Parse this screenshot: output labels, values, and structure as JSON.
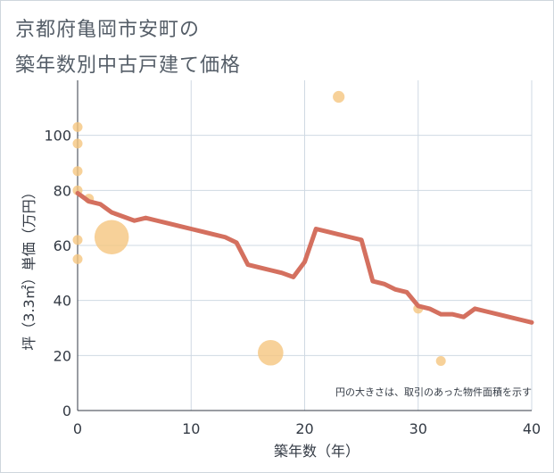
{
  "chart_data": {
    "type": "scatter",
    "title_line1": "京都府亀岡市安町の",
    "title_line2": "築年数別中古戸建て価格",
    "xlabel": "築年数（年）",
    "ylabel": "坪（3.3㎡）単価（万円）",
    "note": "円の大きさは、取引のあった物件面積を示す",
    "xlim": [
      0,
      40
    ],
    "ylim": [
      0,
      120
    ],
    "x_ticks": [
      0,
      10,
      20,
      30,
      40
    ],
    "y_ticks": [
      0,
      20,
      40,
      60,
      80,
      100
    ],
    "points": [
      {
        "x": 0,
        "y": 103,
        "size": 1
      },
      {
        "x": 0,
        "y": 97,
        "size": 1
      },
      {
        "x": 0,
        "y": 87,
        "size": 1
      },
      {
        "x": 0,
        "y": 80,
        "size": 1
      },
      {
        "x": 0,
        "y": 62,
        "size": 1
      },
      {
        "x": 0,
        "y": 55,
        "size": 1
      },
      {
        "x": 1,
        "y": 77,
        "size": 1
      },
      {
        "x": 3,
        "y": 63,
        "size": 3.5
      },
      {
        "x": 17,
        "y": 21,
        "size": 2.6
      },
      {
        "x": 23,
        "y": 114,
        "size": 1.2
      },
      {
        "x": 30,
        "y": 37,
        "size": 1
      },
      {
        "x": 32,
        "y": 18,
        "size": 1
      }
    ],
    "series": [
      {
        "name": "trend",
        "x": [
          0,
          1,
          2,
          3,
          4,
          5,
          6,
          7,
          8,
          9,
          10,
          11,
          12,
          13,
          14,
          15,
          16,
          17,
          18,
          19,
          20,
          21,
          22,
          23,
          24,
          25,
          26,
          27,
          28,
          29,
          30,
          31,
          32,
          33,
          34,
          35,
          36,
          37,
          38,
          39,
          40
        ],
        "values": [
          79,
          76,
          75,
          72,
          70.5,
          69,
          70,
          69,
          68,
          67,
          66,
          65,
          64,
          63,
          61,
          53,
          52,
          51,
          50,
          48.5,
          54,
          66,
          65,
          64,
          63,
          62,
          47,
          46,
          44,
          43,
          38,
          37,
          35,
          35,
          34,
          37,
          36,
          35,
          34,
          33,
          32
        ]
      }
    ],
    "colors": {
      "line": "#d4705f",
      "bubble": "#f5c57f",
      "grid": "#cfd9e3",
      "axis": "#333a44"
    }
  }
}
